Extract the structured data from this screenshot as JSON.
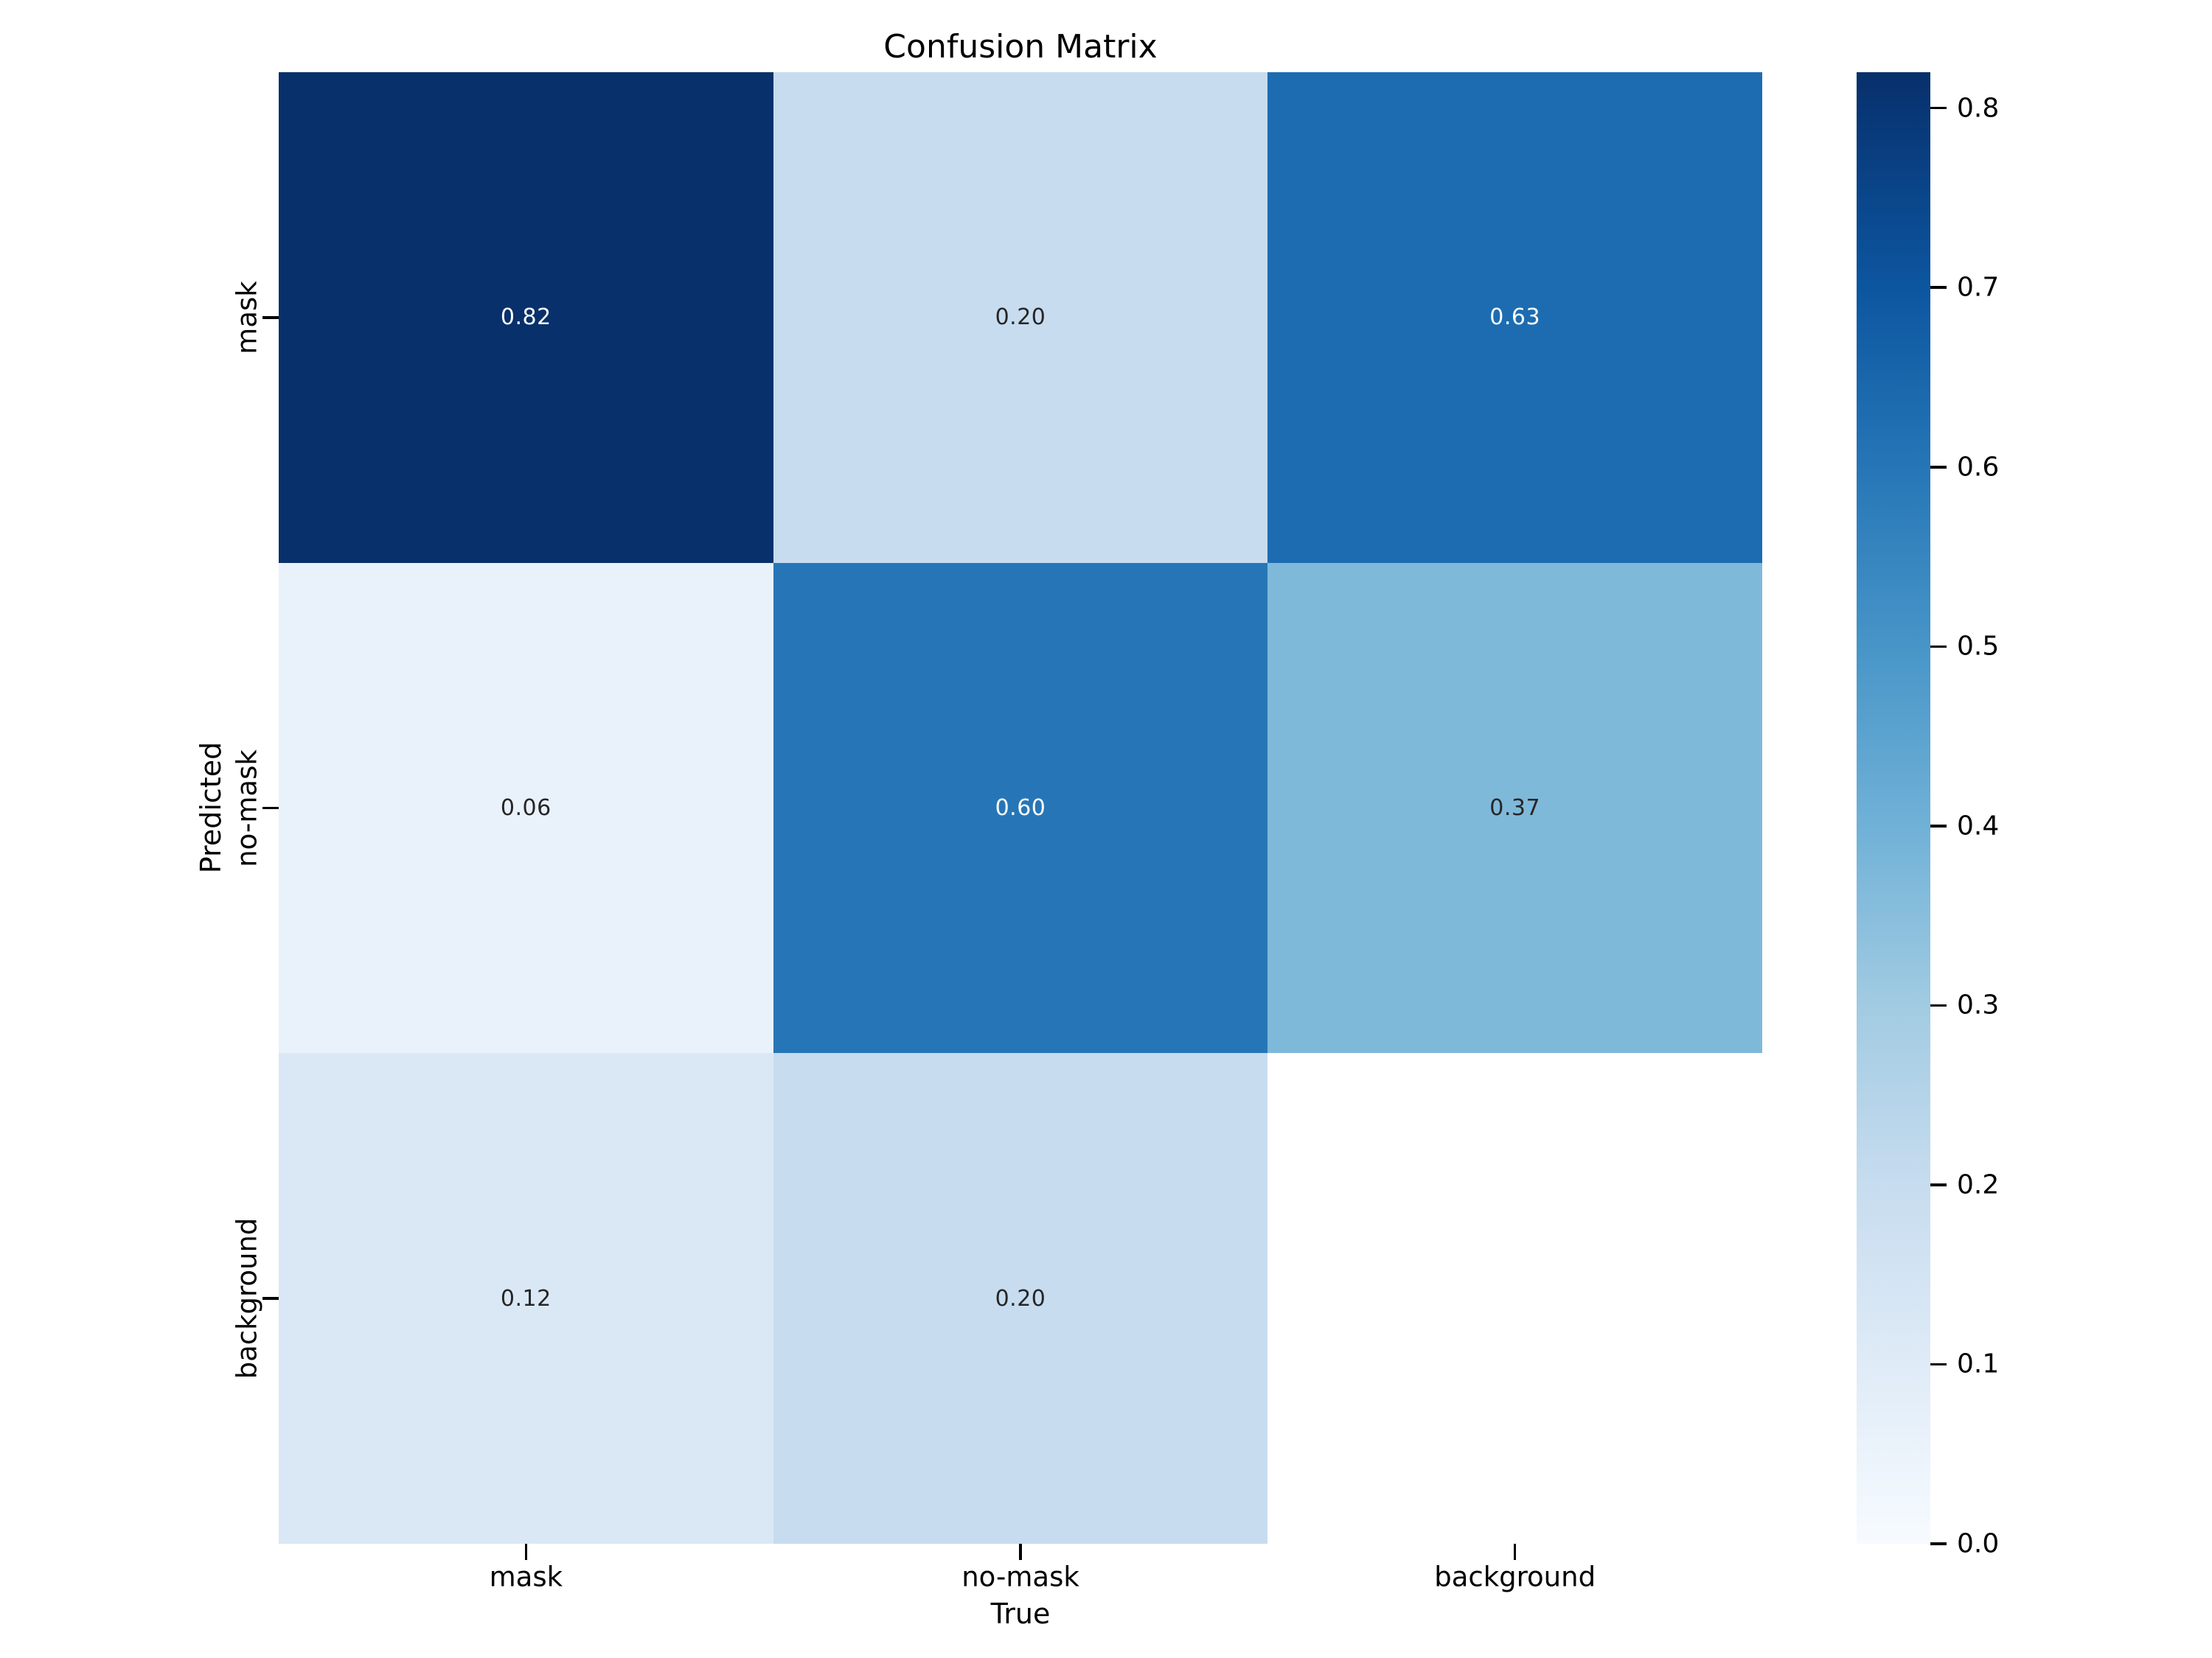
{
  "title": "Confusion Matrix",
  "chart_data": {
    "type": "heatmap",
    "title": "Confusion Matrix",
    "xlabel": "True",
    "ylabel": "Predicted",
    "x_categories": [
      "mask",
      "no-mask",
      "background"
    ],
    "y_categories": [
      "mask",
      "no-mask",
      "background"
    ],
    "matrix": [
      [
        0.82,
        0.2,
        0.63
      ],
      [
        0.06,
        0.6,
        0.37
      ],
      [
        0.12,
        0.2,
        null
      ]
    ],
    "cell_labels": [
      [
        "0.82",
        "0.20",
        "0.63"
      ],
      [
        "0.06",
        "0.60",
        "0.37"
      ],
      [
        "0.12",
        "0.20",
        ""
      ]
    ],
    "cell_colors": [
      [
        "#08306b",
        "#c7dcef",
        "#1d6cb1"
      ],
      [
        "#e9f2fa",
        "#2676b7",
        "#7fb9da"
      ],
      [
        "#dae8f6",
        "#c7dcef",
        "#ffffff"
      ]
    ],
    "cell_text_colors": [
      [
        "#ffffff",
        "#262626",
        "#ffffff"
      ],
      [
        "#262626",
        "#ffffff",
        "#262626"
      ],
      [
        "#262626",
        "#262626",
        "#262626"
      ]
    ],
    "masked_cells": [
      [
        2,
        2
      ]
    ],
    "colormap": "Blues",
    "vmin": 0.0,
    "vmax": 0.82,
    "grid": false,
    "legend_position": "right-colorbar",
    "colorbar": {
      "tick_values": [
        0.0,
        0.1,
        0.2,
        0.3,
        0.4,
        0.5,
        0.6,
        0.7,
        0.8
      ],
      "tick_labels": [
        "0.0",
        "0.1",
        "0.2",
        "0.3",
        "0.4",
        "0.5",
        "0.6",
        "0.7",
        "0.8"
      ],
      "gradient_stops": [
        {
          "pos": 0,
          "color": "#08306b"
        },
        {
          "pos": 2.44,
          "color": "#083675"
        },
        {
          "pos": 14.63,
          "color": "#0c56a0"
        },
        {
          "pos": 26.83,
          "color": "#2676b7"
        },
        {
          "pos": 39.02,
          "color": "#4795c8"
        },
        {
          "pos": 51.22,
          "color": "#70b1d7"
        },
        {
          "pos": 63.41,
          "color": "#a1cbe2"
        },
        {
          "pos": 75.61,
          "color": "#c7dcef"
        },
        {
          "pos": 87.8,
          "color": "#dfebf7"
        },
        {
          "pos": 100,
          "color": "#f7fbff"
        }
      ]
    }
  },
  "colors": {
    "background": "#ffffff",
    "tick": "#000000",
    "title_text": "#000000",
    "annot_dark": "#262626",
    "annot_light": "#ffffff",
    "cmap_high": "#08306b",
    "cmap_low": "#f7fbff"
  }
}
